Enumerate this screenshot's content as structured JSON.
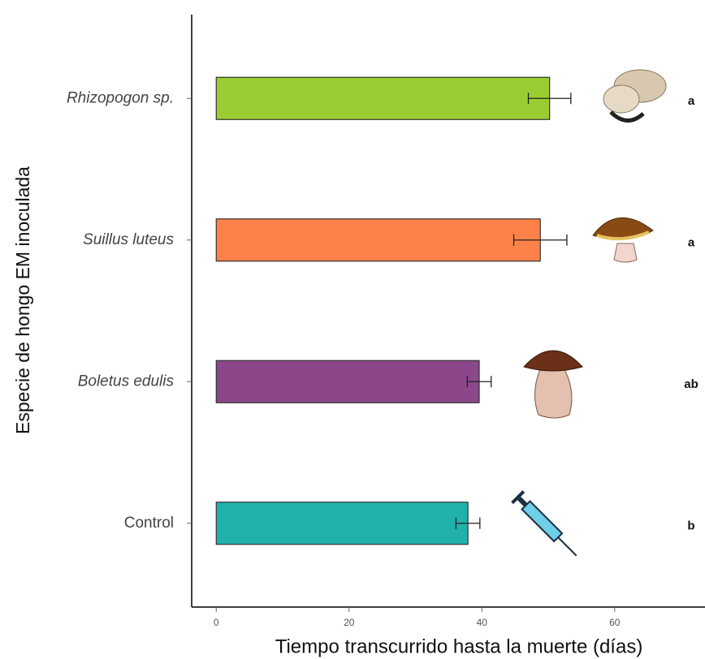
{
  "chart_data": {
    "type": "bar",
    "orientation": "horizontal",
    "x_label": "Tiempo transcurrido hasta la muerte (días)",
    "y_label": "Especie  de hongo EM inoculada",
    "categories": [
      "Rhizopogon sp.",
      "Suillus luteus",
      "Boletus edulis",
      "Control"
    ],
    "category_italic": [
      true,
      true,
      true,
      false
    ],
    "values": [
      50.2,
      48.8,
      39.6,
      37.9
    ],
    "errors": [
      3.2,
      4.0,
      1.8,
      1.8
    ],
    "colors": [
      "#9acd32",
      "#fd8249",
      "#8b4789",
      "#20b2aa"
    ],
    "letters": [
      "a",
      "a",
      "ab",
      "b"
    ],
    "xlim": [
      -3.7,
      73.6
    ],
    "xticks": [
      0,
      20,
      40,
      60
    ]
  }
}
